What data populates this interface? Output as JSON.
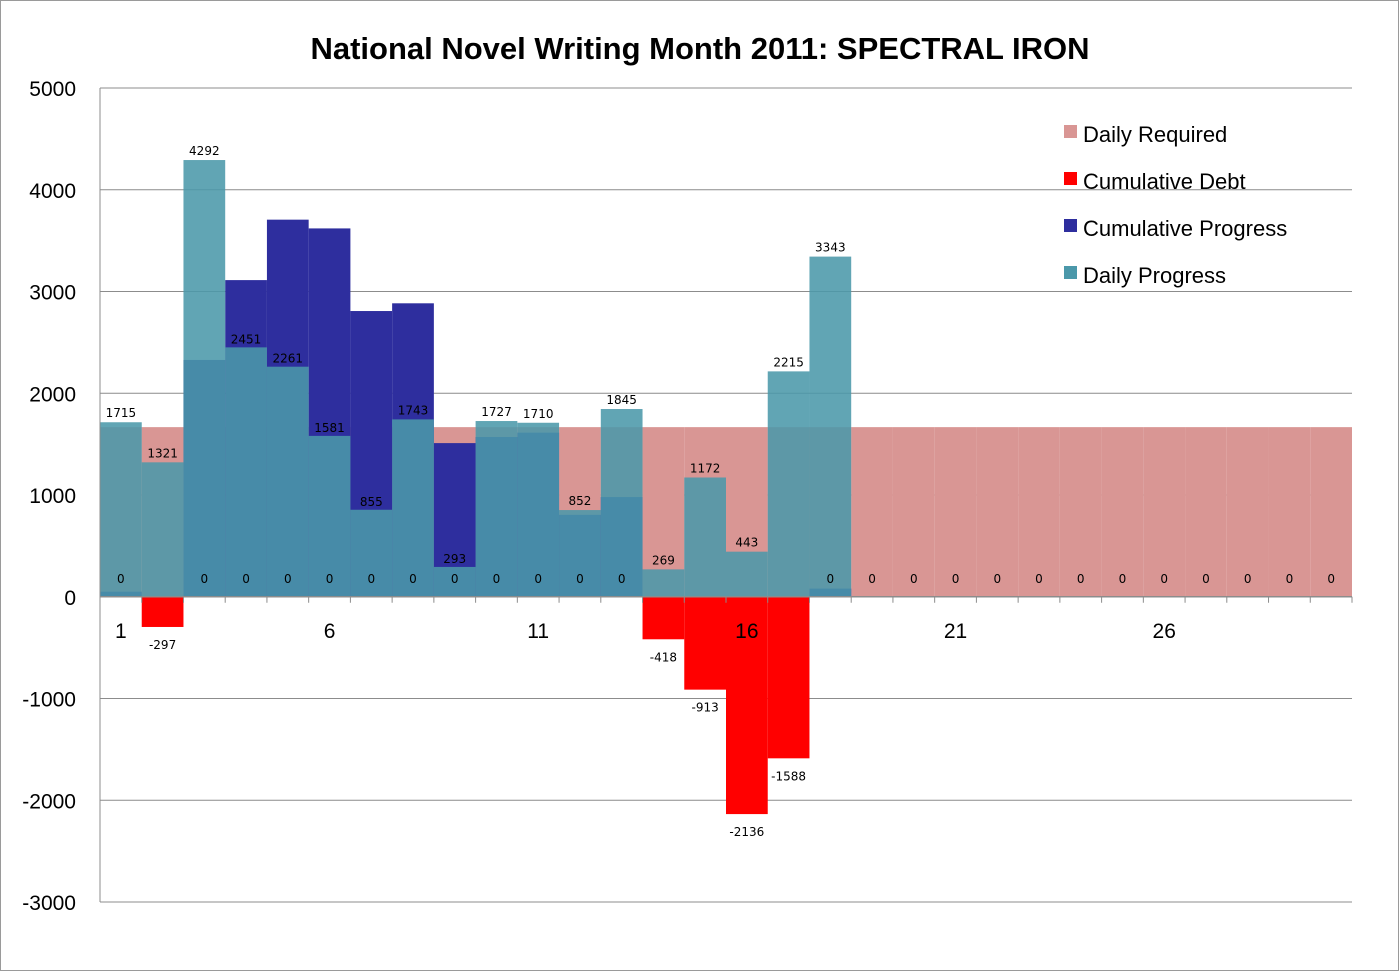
{
  "chart_data": {
    "type": "bar",
    "title": "National Novel Writing Month 2011: SPECTRAL IRON",
    "xlabel": "",
    "ylabel": "",
    "ylim": [
      -3000,
      5000
    ],
    "yticks": [
      5000,
      4000,
      3000,
      2000,
      1000,
      0,
      -1000,
      -2000,
      -3000
    ],
    "x": [
      1,
      2,
      3,
      4,
      5,
      6,
      7,
      8,
      9,
      10,
      11,
      12,
      13,
      14,
      15,
      16,
      17,
      18,
      19,
      20,
      21,
      22,
      23,
      24,
      25,
      26,
      27,
      28,
      29,
      30
    ],
    "xtick_labels": [
      "1",
      "6",
      "11",
      "16",
      "21",
      "26"
    ],
    "xtick_positions": [
      1,
      6,
      11,
      16,
      21,
      26
    ],
    "grid": true,
    "legend_position": "top-right",
    "series": [
      {
        "name": "Daily Required",
        "color": "#D99694",
        "values": [
          1667,
          1667,
          1667,
          1667,
          1667,
          1667,
          1667,
          1667,
          1667,
          1667,
          1667,
          1667,
          1667,
          1667,
          1667,
          1667,
          1667,
          1667,
          1667,
          1667,
          1667,
          1667,
          1667,
          1667,
          1667,
          1667,
          1667,
          1667,
          1667,
          1667
        ]
      },
      {
        "name": "Cumulative Debt",
        "color": "#FF0000",
        "values": [
          0,
          -297,
          0,
          0,
          0,
          0,
          0,
          0,
          0,
          0,
          0,
          0,
          0,
          -418,
          -913,
          -2136,
          -1588,
          0,
          0,
          0,
          0,
          0,
          0,
          0,
          0,
          0,
          0,
          0,
          0,
          0
        ],
        "labels": [
          "0",
          "-297",
          "0",
          "0",
          "0",
          "0",
          "0",
          "0",
          "0",
          "0",
          "0",
          "0",
          "0",
          "-418",
          "-913",
          "-2136",
          "-1588",
          "0",
          "0",
          "0",
          "0",
          "0",
          "0",
          "0",
          "0",
          "0",
          "0",
          "0",
          "0",
          "0"
        ]
      },
      {
        "name": "Cumulative Progress",
        "color": "#2E2E9E",
        "values": [
          50,
          0,
          2327,
          3112,
          3706,
          3620,
          2808,
          2884,
          1510,
          1570,
          1613,
          805,
          980,
          0,
          0,
          0,
          0,
          80,
          0,
          0,
          0,
          0,
          0,
          0,
          0,
          0,
          0,
          0,
          0,
          0
        ]
      },
      {
        "name": "Daily Progress",
        "color": "#4B98AA",
        "values": [
          1715,
          1321,
          4292,
          2451,
          2261,
          1581,
          855,
          1743,
          293,
          1727,
          1710,
          852,
          1845,
          269,
          1172,
          443,
          2215,
          3343,
          0,
          0,
          0,
          0,
          0,
          0,
          0,
          0,
          0,
          0,
          0,
          0
        ],
        "labels": [
          "1715",
          "1321",
          "4292",
          "2451",
          "2261",
          "1581",
          "855",
          "1743",
          "293",
          "1727",
          "1710",
          "852",
          "1845",
          "269",
          "1172",
          "443",
          "2215",
          "3343",
          "",
          "",
          "",
          "",
          "",
          "",
          "",
          "",
          "",
          "",
          "",
          ""
        ]
      }
    ]
  }
}
